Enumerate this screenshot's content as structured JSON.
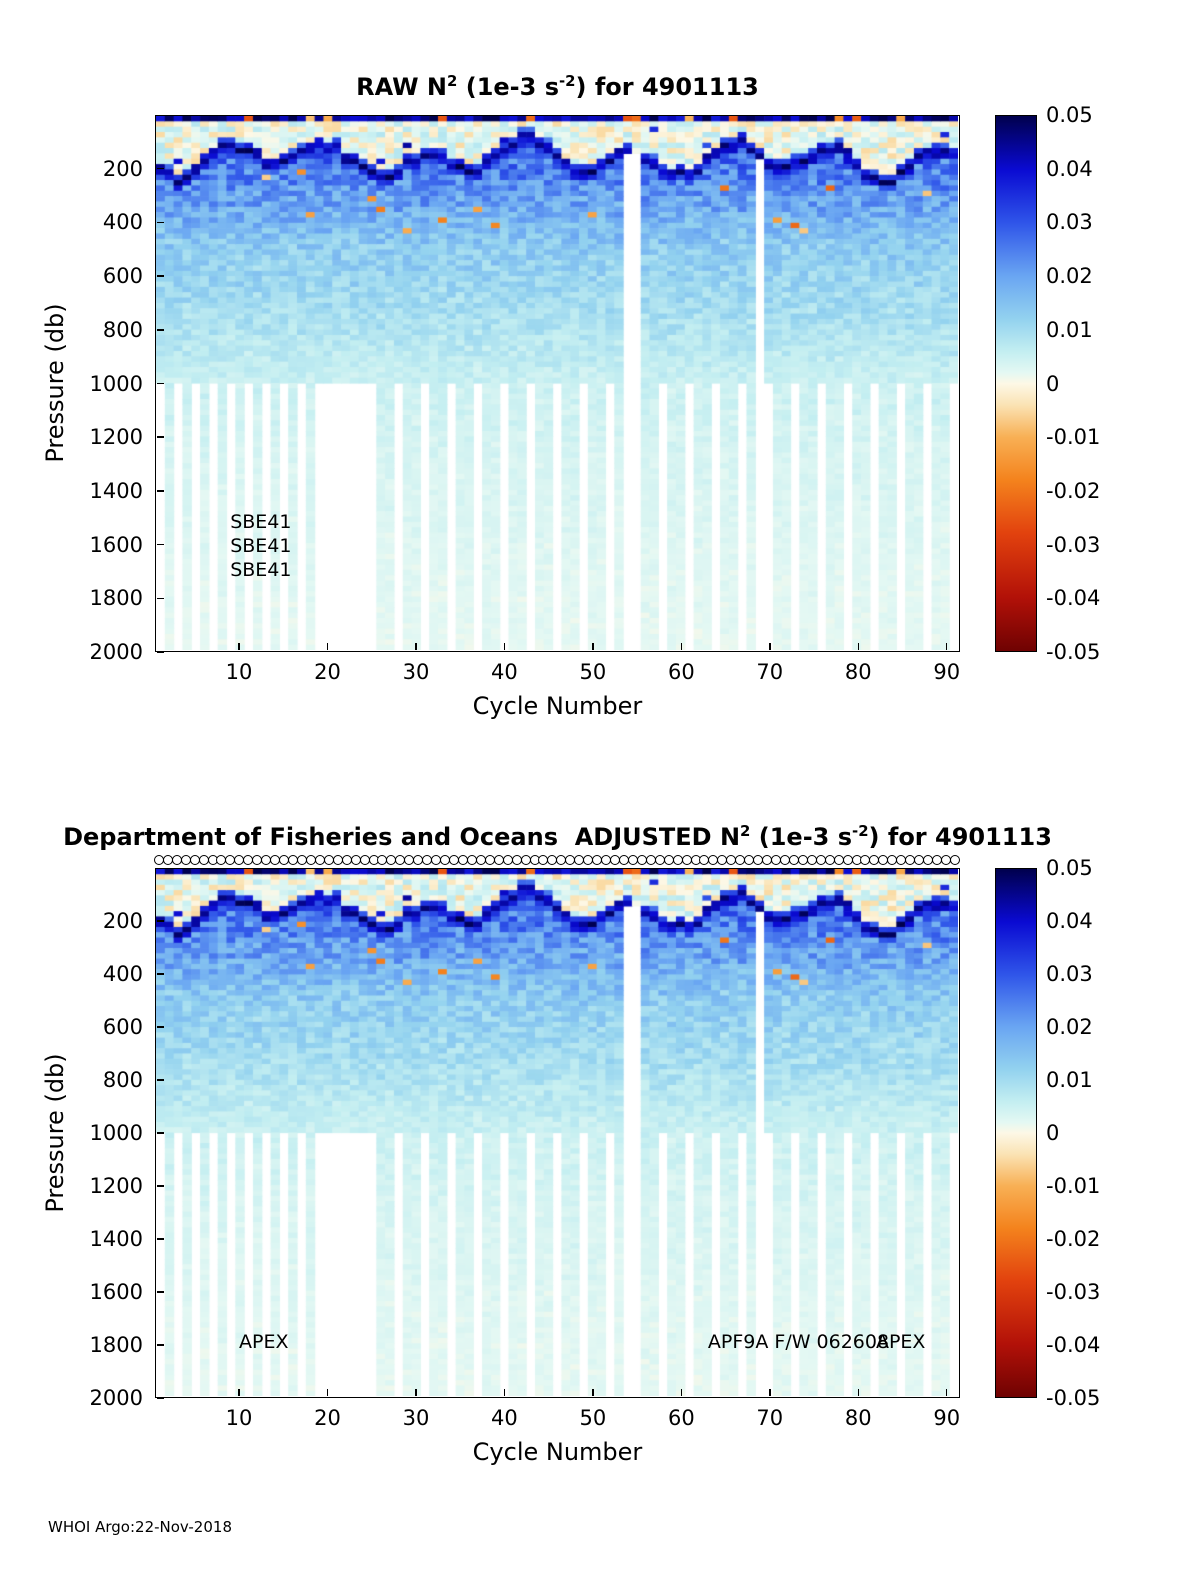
{
  "page": {
    "footer_text": "WHOI Argo:22-Nov-2018"
  },
  "charts": [
    {
      "name": "raw",
      "title_parts": {
        "pre": "RAW N",
        "sup1": "2",
        "mid": " (1e-3 s",
        "sup2": "-2",
        "post": ") for 4901113"
      },
      "xlabel": "Cycle Number",
      "ylabel": "Pressure (db)"
    },
    {
      "name": "adjusted",
      "title_parts": {
        "pre": "Department of Fisheries and Oceans  ADJUSTED N",
        "sup1": "2",
        "mid": " (1e-3 s",
        "sup2": "-2",
        "post": ") for 4901113"
      },
      "xlabel": "Cycle Number",
      "ylabel": "Pressure (db)"
    }
  ],
  "chart_data": {
    "type": "heatmap",
    "value_units": "1e-3 s^-2",
    "x": {
      "label": "Cycle Number",
      "min": 1,
      "max": 91,
      "ticks": [
        10,
        20,
        30,
        40,
        50,
        60,
        70,
        80,
        90
      ]
    },
    "y": {
      "label": "Pressure (db)",
      "min": 0,
      "max": 2000,
      "ticks": [
        200,
        400,
        600,
        800,
        1000,
        1200,
        1400,
        1600,
        1800,
        2000
      ]
    },
    "colorbar": {
      "min": -0.05,
      "max": 0.05,
      "ticks": [
        0.05,
        0.04,
        0.03,
        0.02,
        0.01,
        0,
        -0.01,
        -0.02,
        -0.03,
        -0.04,
        -0.05
      ],
      "stops": [
        {
          "v": 0.05,
          "c": "#00004d"
        },
        {
          "v": 0.04,
          "c": "#0a0ad2"
        },
        {
          "v": 0.03,
          "c": "#2f55e9"
        },
        {
          "v": 0.02,
          "c": "#6aa6f2"
        },
        {
          "v": 0.012,
          "c": "#93d2ef"
        },
        {
          "v": 0.006,
          "c": "#c3eef1"
        },
        {
          "v": 0.002,
          "c": "#e4f8f3"
        },
        {
          "v": 0.0,
          "c": "#fdf8e6"
        },
        {
          "v": -0.004,
          "c": "#fae3b4"
        },
        {
          "v": -0.01,
          "c": "#f8b055"
        },
        {
          "v": -0.018,
          "c": "#f4831d"
        },
        {
          "v": -0.028,
          "c": "#e2420e"
        },
        {
          "v": -0.04,
          "c": "#b21108"
        },
        {
          "v": -0.05,
          "c": "#6f0202"
        }
      ]
    },
    "panels": [
      {
        "title": "RAW N^2 (1e-3 s^-2) for 4901113",
        "annotations": [
          {
            "text": "SBE41",
            "cycle": 9,
            "pressure": 1515
          },
          {
            "text": "SBE41",
            "cycle": 9,
            "pressure": 1605
          },
          {
            "text": "SBE41",
            "cycle": 9,
            "pressure": 1695
          }
        ],
        "top_marker_count": 0,
        "field_model": {
          "seed": 7,
          "cols": 91,
          "rows": 100,
          "depth_max": 2000,
          "thermocline": {
            "base": 165,
            "amplitude": 75,
            "noise": 36,
            "band_half": 30,
            "band_peak": 0.048
          },
          "surface": {
            "mean": 0.002,
            "spread": 0.013,
            "top_row_high": 0.045,
            "top_row_negative_prob": 0.12
          },
          "profile_anchors": [
            [
              120,
              0.028
            ],
            [
              300,
              0.021
            ],
            [
              500,
              0.013
            ],
            [
              800,
              0.0085
            ],
            [
              1000,
              0.005
            ],
            [
              1300,
              0.0035
            ],
            [
              1700,
              0.0025
            ],
            [
              2000,
              0.002
            ]
          ],
          "speckle": {
            "prob": 0.013,
            "max_depth": 450,
            "range": [
              -0.026,
              -0.006
            ]
          },
          "missing": {
            "below_db": 1000,
            "early_modulo": 2,
            "early_until": 19,
            "late_modulo": 3,
            "block_gap": [
              20,
              24
            ],
            "column_gaps": [
              {
                "cycles": [
                  54,
                  55
                ],
                "from_db": 140
              },
              {
                "cycles": [
                  69
                ],
                "from_db": 150
              }
            ]
          }
        }
      },
      {
        "title": "Department of Fisheries and Oceans ADJUSTED N^2 (1e-3 s^-2) for 4901113",
        "annotations": [
          {
            "text": "APEX",
            "cycle": 10,
            "pressure": 1790
          },
          {
            "text": "APF9A F/W 062608",
            "cycle": 63,
            "pressure": 1790
          },
          {
            "text": "APEX",
            "cycle": 82,
            "pressure": 1790
          }
        ],
        "top_marker_count": 90,
        "field_model": {
          "seed": 7,
          "cols": 91,
          "rows": 100,
          "depth_max": 2000,
          "thermocline": {
            "base": 165,
            "amplitude": 75,
            "noise": 36,
            "band_half": 30,
            "band_peak": 0.048
          },
          "surface": {
            "mean": 0.002,
            "spread": 0.013,
            "top_row_high": 0.045,
            "top_row_negative_prob": 0.12
          },
          "profile_anchors": [
            [
              120,
              0.028
            ],
            [
              300,
              0.021
            ],
            [
              500,
              0.013
            ],
            [
              800,
              0.0085
            ],
            [
              1000,
              0.005
            ],
            [
              1300,
              0.0035
            ],
            [
              1700,
              0.0025
            ],
            [
              2000,
              0.002
            ]
          ],
          "speckle": {
            "prob": 0.013,
            "max_depth": 450,
            "range": [
              -0.026,
              -0.006
            ]
          },
          "missing": {
            "below_db": 1000,
            "early_modulo": 2,
            "early_until": 19,
            "late_modulo": 3,
            "block_gap": [
              20,
              24
            ],
            "column_gaps": [
              {
                "cycles": [
                  54,
                  55
                ],
                "from_db": 140
              },
              {
                "cycles": [
                  69
                ],
                "from_db": 150
              }
            ]
          }
        }
      }
    ]
  }
}
